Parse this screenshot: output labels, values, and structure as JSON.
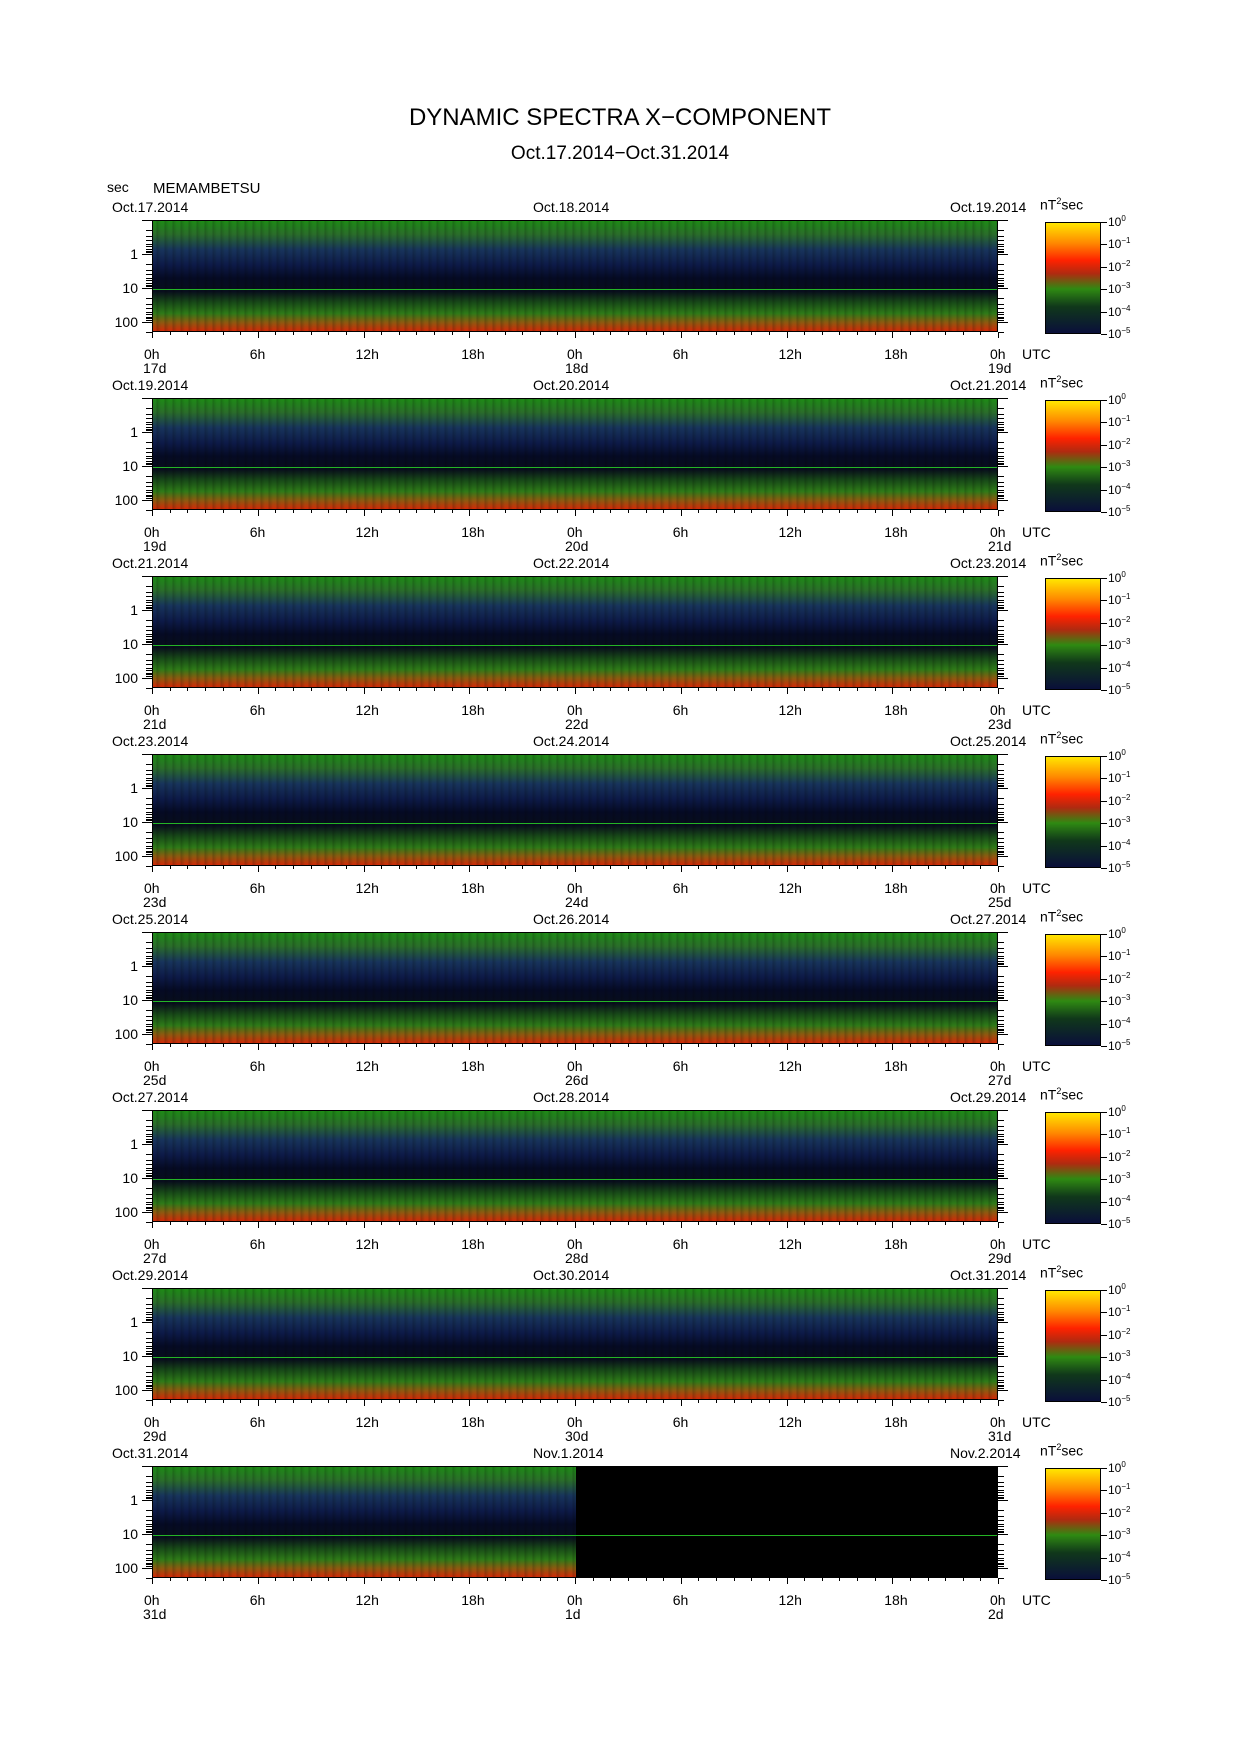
{
  "title": "DYNAMIC SPECTRA X−COMPONENT",
  "subtitle": "Oct.17.2014−Oct.31.2014",
  "period_unit": "sec",
  "station": "MEMAMBETSU",
  "colorbar_unit": "nT",
  "colorbar_unit_exp": "2",
  "colorbar_unit_suffix": "sec",
  "colorbar_base": "10",
  "colorbar_exponents": [
    "0",
    "−1",
    "−2",
    "−3",
    "−4",
    "−5"
  ],
  "y_tick_labels": [
    "1",
    "10",
    "100"
  ],
  "hour_labels": [
    "0h",
    "6h",
    "12h",
    "18h",
    "0h",
    "6h",
    "12h",
    "18h",
    "0h"
  ],
  "utc_label": "UTC",
  "panels": [
    {
      "date_left": "Oct.17.2014",
      "date_mid": "Oct.18.2014",
      "date_right": "Oct.19.2014",
      "day_left": "17d",
      "day_mid": "18d",
      "day_right": "19d"
    },
    {
      "date_left": "Oct.19.2014",
      "date_mid": "Oct.20.2014",
      "date_right": "Oct.21.2014",
      "day_left": "19d",
      "day_mid": "20d",
      "day_right": "21d"
    },
    {
      "date_left": "Oct.21.2014",
      "date_mid": "Oct.22.2014",
      "date_right": "Oct.23.2014",
      "day_left": "21d",
      "day_mid": "22d",
      "day_right": "23d"
    },
    {
      "date_left": "Oct.23.2014",
      "date_mid": "Oct.24.2014",
      "date_right": "Oct.25.2014",
      "day_left": "23d",
      "day_mid": "24d",
      "day_right": "25d"
    },
    {
      "date_left": "Oct.25.2014",
      "date_mid": "Oct.26.2014",
      "date_right": "Oct.27.2014",
      "day_left": "25d",
      "day_mid": "26d",
      "day_right": "27d"
    },
    {
      "date_left": "Oct.27.2014",
      "date_mid": "Oct.28.2014",
      "date_right": "Oct.29.2014",
      "day_left": "27d",
      "day_mid": "28d",
      "day_right": "29d"
    },
    {
      "date_left": "Oct.29.2014",
      "date_mid": "Oct.30.2014",
      "date_right": "Oct.31.2014",
      "day_left": "29d",
      "day_mid": "30d",
      "day_right": "31d"
    },
    {
      "date_left": "Oct.31.2014",
      "date_mid": "Nov.1.2014",
      "date_right": "Nov.2.2014",
      "day_left": "31d",
      "day_mid": "1d",
      "day_right": "2d"
    }
  ],
  "chart_data": {
    "type": "heatmap",
    "title": "DYNAMIC SPECTRA X−COMPONENT",
    "date_range": "Oct.17.2014−Oct.31.2014",
    "station": "MEMAMBETSU",
    "xlabel": "UTC",
    "ylabel": "sec",
    "y_scale": "log",
    "y_ticks": [
      1,
      10,
      100
    ],
    "x_ticks": [
      "0h",
      "6h",
      "12h",
      "18h",
      "0h",
      "6h",
      "12h",
      "18h",
      "0h"
    ],
    "color_scale": "log",
    "color_unit": "nT^2 sec",
    "color_range": [
      1e-05,
      1
    ],
    "colormap": [
      "#0a0f3a",
      "#10381a",
      "#2f8a12",
      "#b02a10",
      "#ff2200",
      "#ff8a00",
      "#ffe600"
    ],
    "data_end": "Nov.1.2014 0h",
    "panel_count": 8,
    "colorbar_placement": "right"
  },
  "colors": {
    "data_absent": "#000000",
    "axis": "#000000"
  }
}
